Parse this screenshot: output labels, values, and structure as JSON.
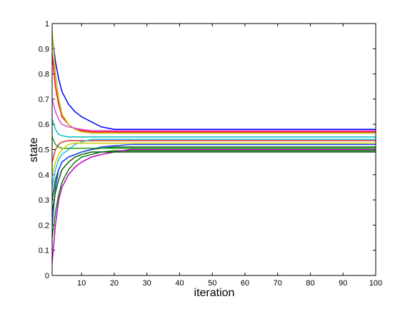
{
  "chart_data": {
    "type": "line",
    "xlabel": "iteration",
    "ylabel": "state",
    "x": [
      1,
      2,
      3,
      4,
      6,
      8,
      10,
      13,
      16,
      20,
      25,
      100
    ],
    "xlim": [
      1,
      100
    ],
    "xticks": [
      10,
      20,
      30,
      40,
      50,
      60,
      70,
      80,
      90,
      100
    ],
    "ylim": [
      0,
      1
    ],
    "yticks": [
      0,
      0.1,
      0.2,
      0.3,
      0.4,
      0.5,
      0.6,
      0.7,
      0.8,
      0.9,
      1
    ],
    "grid": false,
    "series": [
      {
        "color": "#0000ff",
        "values": [
          0.95,
          0.85,
          0.78,
          0.73,
          0.68,
          0.65,
          0.63,
          0.61,
          0.59,
          0.58,
          0.58,
          0.58
        ]
      },
      {
        "color": "#008000",
        "values": [
          0.15,
          0.25,
          0.32,
          0.37,
          0.42,
          0.45,
          0.47,
          0.48,
          0.49,
          0.495,
          0.495,
          0.495
        ]
      },
      {
        "color": "#ff0000",
        "values": [
          0.88,
          0.75,
          0.68,
          0.63,
          0.6,
          0.58,
          0.575,
          0.57,
          0.57,
          0.57,
          0.57,
          0.57
        ]
      },
      {
        "color": "#00bfbf",
        "values": [
          0.62,
          0.58,
          0.56,
          0.555,
          0.55,
          0.55,
          0.55,
          0.55,
          0.55,
          0.55,
          0.55,
          0.55
        ]
      },
      {
        "color": "#bf00bf",
        "values": [
          0.05,
          0.2,
          0.3,
          0.35,
          0.4,
          0.43,
          0.45,
          0.47,
          0.48,
          0.49,
          0.5,
          0.5
        ]
      },
      {
        "color": "#bfbf00",
        "values": [
          0.97,
          0.8,
          0.7,
          0.64,
          0.6,
          0.58,
          0.57,
          0.565,
          0.565,
          0.565,
          0.565,
          0.565
        ]
      },
      {
        "color": "#006400",
        "values": [
          0.3,
          0.38,
          0.42,
          0.45,
          0.47,
          0.48,
          0.49,
          0.5,
          0.505,
          0.51,
          0.51,
          0.51
        ]
      },
      {
        "color": "#1f3fff",
        "values": [
          0.2,
          0.35,
          0.42,
          0.45,
          0.47,
          0.48,
          0.49,
          0.5,
          0.51,
          0.515,
          0.52,
          0.52
        ]
      },
      {
        "color": "#e0301e",
        "values": [
          0.45,
          0.5,
          0.52,
          0.53,
          0.535,
          0.535,
          0.535,
          0.535,
          0.535,
          0.535,
          0.535,
          0.535
        ]
      },
      {
        "color": "#e040e0",
        "values": [
          0.7,
          0.65,
          0.62,
          0.6,
          0.59,
          0.585,
          0.58,
          0.575,
          0.575,
          0.575,
          0.575,
          0.575
        ]
      },
      {
        "color": "#20c0e0",
        "values": [
          0.35,
          0.42,
          0.46,
          0.48,
          0.5,
          0.52,
          0.53,
          0.54,
          0.54,
          0.54,
          0.54,
          0.54
        ]
      },
      {
        "color": "#20a020",
        "values": [
          0.55,
          0.52,
          0.51,
          0.505,
          0.505,
          0.505,
          0.505,
          0.505,
          0.505,
          0.505,
          0.505,
          0.505
        ]
      },
      {
        "color": "#d0d000",
        "values": [
          0.4,
          0.45,
          0.48,
          0.5,
          0.52,
          0.525,
          0.525,
          0.525,
          0.525,
          0.525,
          0.525,
          0.525
        ]
      },
      {
        "color": "#0a5a0a",
        "values": [
          0.25,
          0.33,
          0.38,
          0.42,
          0.45,
          0.47,
          0.48,
          0.49,
          0.49,
          0.49,
          0.49,
          0.49
        ]
      }
    ]
  }
}
